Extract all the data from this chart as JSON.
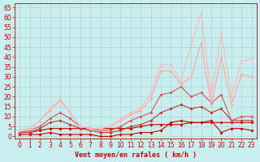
{
  "background_color": "#c8eef0",
  "grid_color": "#aacccc",
  "xlabel": "Vent moyen/en rafales ( km/h )",
  "xlabel_color": "#cc0000",
  "xlabel_fontsize": 6.0,
  "ylabel_ticks": [
    0,
    5,
    10,
    15,
    20,
    25,
    30,
    35,
    40,
    45,
    50,
    55,
    60,
    65
  ],
  "xtick_labels": [
    "0",
    "1",
    "2",
    "3",
    "4",
    "5",
    "6",
    "7",
    "8",
    "9",
    "10",
    "11",
    "12",
    "13",
    "14",
    "15",
    "16",
    "17",
    "18",
    "19",
    "20",
    "21",
    "22",
    "23"
  ],
  "xlim": [
    -0.5,
    23.5
  ],
  "ylim": [
    -1,
    67
  ],
  "lines": [
    {
      "x": [
        0,
        1,
        2,
        3,
        4,
        5,
        6,
        7,
        8,
        9,
        10,
        11,
        12,
        13,
        14,
        15,
        16,
        17,
        18,
        19,
        20,
        21,
        22,
        23
      ],
      "y": [
        1,
        1,
        1,
        2,
        1,
        1,
        1,
        1,
        0,
        0,
        1,
        1,
        2,
        2,
        3,
        7,
        8,
        7,
        7,
        8,
        2,
        4,
        4,
        3
      ],
      "color": "#cc0000",
      "lw": 0.8
    },
    {
      "x": [
        0,
        1,
        2,
        3,
        4,
        5,
        6,
        7,
        8,
        9,
        10,
        11,
        12,
        13,
        14,
        15,
        16,
        17,
        18,
        19,
        20,
        21,
        22,
        23
      ],
      "y": [
        2,
        2,
        3,
        4,
        4,
        4,
        4,
        4,
        4,
        4,
        4,
        4,
        5,
        6,
        6,
        6,
        6,
        7,
        7,
        7,
        7,
        7,
        7,
        7
      ],
      "color": "#cc0000",
      "lw": 0.8
    },
    {
      "x": [
        0,
        1,
        2,
        3,
        4,
        5,
        6,
        7,
        8,
        9,
        10,
        11,
        12,
        13,
        14,
        15,
        16,
        17,
        18,
        19,
        20,
        21,
        22,
        23
      ],
      "y": [
        2,
        2,
        4,
        7,
        8,
        6,
        4,
        3,
        2,
        2,
        3,
        5,
        6,
        8,
        12,
        14,
        16,
        14,
        15,
        12,
        14,
        8,
        8,
        8
      ],
      "color": "#cc3333",
      "lw": 0.8
    },
    {
      "x": [
        0,
        1,
        2,
        3,
        4,
        5,
        6,
        7,
        8,
        9,
        10,
        11,
        12,
        13,
        14,
        15,
        16,
        17,
        18,
        19,
        20,
        21,
        22,
        23
      ],
      "y": [
        2,
        3,
        5,
        9,
        12,
        9,
        5,
        4,
        3,
        3,
        5,
        8,
        10,
        12,
        21,
        22,
        25,
        20,
        22,
        17,
        21,
        8,
        10,
        10
      ],
      "color": "#dd5555",
      "lw": 0.8
    },
    {
      "x": [
        0,
        1,
        2,
        3,
        4,
        5,
        6,
        7,
        8,
        9,
        10,
        11,
        12,
        13,
        14,
        15,
        16,
        17,
        18,
        19,
        20,
        21,
        22,
        23
      ],
      "y": [
        3,
        4,
        8,
        13,
        18,
        12,
        5,
        4,
        4,
        5,
        8,
        11,
        13,
        19,
        33,
        33,
        26,
        30,
        47,
        16,
        40,
        16,
        31,
        30
      ],
      "color": "#ffaaaa",
      "lw": 0.9
    },
    {
      "x": [
        0,
        1,
        2,
        3,
        4,
        5,
        6,
        7,
        8,
        9,
        10,
        11,
        12,
        13,
        14,
        15,
        16,
        17,
        18,
        19,
        20,
        21,
        22,
        23
      ],
      "y": [
        3,
        4,
        8,
        14,
        19,
        12,
        5,
        4,
        4,
        5,
        9,
        12,
        14,
        22,
        36,
        36,
        28,
        46,
        62,
        20,
        52,
        20,
        38,
        39
      ],
      "color": "#ffbbbb",
      "lw": 0.9
    }
  ],
  "tick_fontsize": 5.5,
  "tick_color": "#cc0000",
  "marker_size": 2.0
}
